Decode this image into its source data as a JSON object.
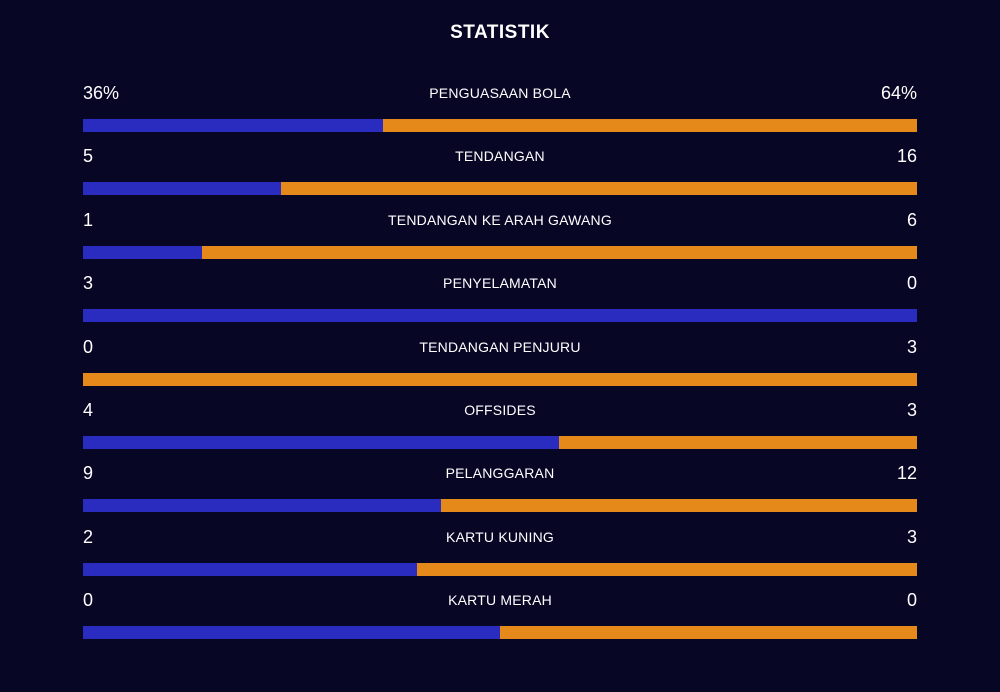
{
  "title": "STATISTIK",
  "colors": {
    "background": "#080625",
    "home": "#2a2cbf",
    "away": "#e4891a"
  },
  "stats": [
    {
      "label": "PENGUASAAN BOLA",
      "home": "36%",
      "away": "64%",
      "home_share": 0.36
    },
    {
      "label": "TENDANGAN",
      "home": "5",
      "away": "16",
      "home_share": 0.238
    },
    {
      "label": "TENDANGAN KE ARAH GAWANG",
      "home": "1",
      "away": "6",
      "home_share": 0.143
    },
    {
      "label": "PENYELAMATAN",
      "home": "3",
      "away": "0",
      "home_share": 1.0
    },
    {
      "label": "TENDANGAN PENJURU",
      "home": "0",
      "away": "3",
      "home_share": 0.0
    },
    {
      "label": "OFFSIDES",
      "home": "4",
      "away": "3",
      "home_share": 0.571
    },
    {
      "label": "PELANGGARAN",
      "home": "9",
      "away": "12",
      "home_share": 0.429
    },
    {
      "label": "KARTU KUNING",
      "home": "2",
      "away": "3",
      "home_share": 0.4
    },
    {
      "label": "KARTU MERAH",
      "home": "0",
      "away": "0",
      "home_share": 0.5
    }
  ]
}
